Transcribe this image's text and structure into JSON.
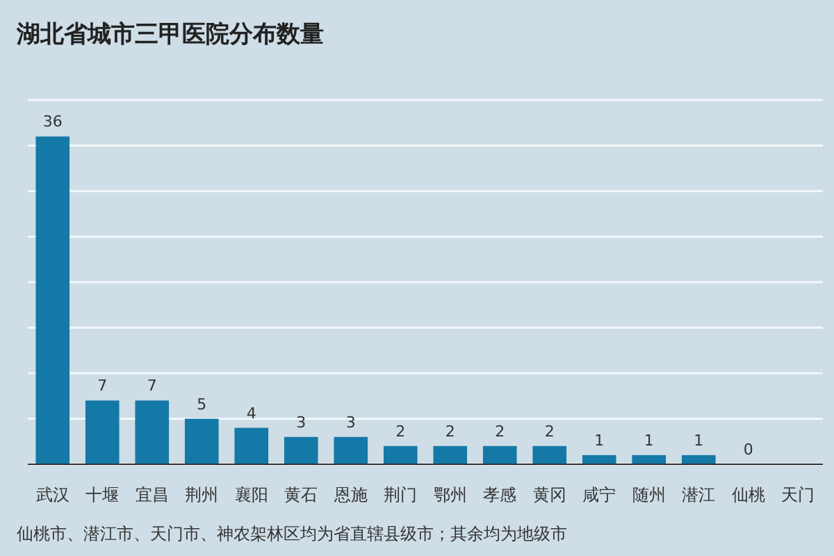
{
  "chart_data": {
    "type": "bar",
    "title": "湖北省城市三甲医院分布数量",
    "categories": [
      "武汉",
      "十堰",
      "宜昌",
      "荆州",
      "襄阳",
      "黄石",
      "恩施",
      "荆门",
      "鄂州",
      "孝感",
      "黄冈",
      "咸宁",
      "随州",
      "潜江",
      "仙桃",
      "天门"
    ],
    "values": [
      36,
      7,
      7,
      5,
      4,
      3,
      3,
      2,
      2,
      2,
      2,
      1,
      1,
      1,
      0,
      null
    ],
    "color": "#1479a7",
    "data_labels": true,
    "ylim": [
      0,
      40
    ],
    "yticks": [
      {
        "value": 0,
        "label": null
      },
      {
        "value": 5,
        "label": null
      },
      {
        "value": 10,
        "label": null
      },
      {
        "value": 15,
        "label": null
      },
      {
        "value": 20,
        "label": null
      },
      {
        "value": 25,
        "label": null
      },
      {
        "value": 30,
        "label": null
      },
      {
        "value": 35,
        "label": null
      },
      {
        "value": 40,
        "label": null
      }
    ],
    "grid": "y",
    "tick_labels": "x",
    "annotations": [
      "仙桃市、潜江市、天门市、神农架林区均为省直辖县级市；其余均为地级市"
    ]
  }
}
